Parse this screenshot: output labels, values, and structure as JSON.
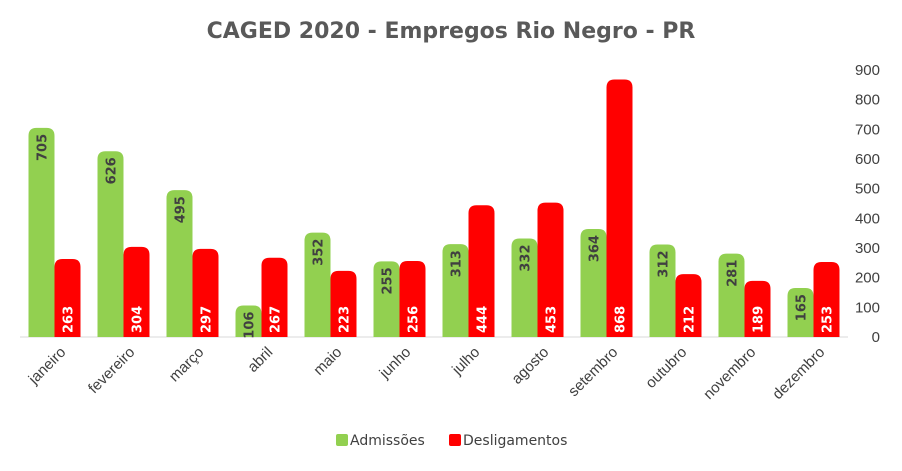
{
  "chart_data": {
    "type": "bar",
    "title": "CAGED 2020 - Empregos Rio Negro - PR",
    "categories": [
      "janeiro",
      "fevereiro",
      "março",
      "abril",
      "maio",
      "junho",
      "julho",
      "agosto",
      "setembro",
      "outubro",
      "novembro",
      "dezembro"
    ],
    "series": [
      {
        "name": "Admissões",
        "color": "#92d050",
        "values": [
          705,
          626,
          495,
          106,
          352,
          255,
          313,
          332,
          364,
          312,
          281,
          165
        ]
      },
      {
        "name": "Desligamentos",
        "color": "#ff0000",
        "values": [
          263,
          304,
          297,
          267,
          223,
          256,
          444,
          453,
          868,
          212,
          189,
          253
        ]
      }
    ],
    "ylim": [
      0,
      900
    ],
    "yticks": [
      0,
      100,
      200,
      300,
      400,
      500,
      600,
      700,
      800,
      900
    ],
    "y_axis_side": "right",
    "grid": false,
    "legend_position": "bottom",
    "xlabel": "",
    "ylabel": ""
  }
}
